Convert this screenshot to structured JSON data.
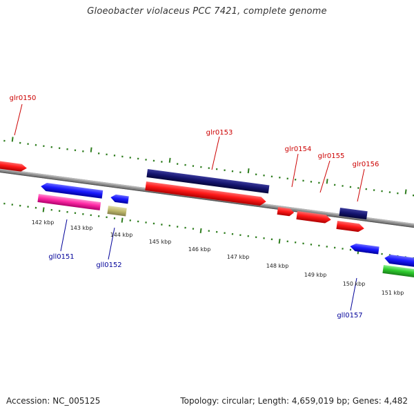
{
  "title": "Gloeobacter violaceus PCC 7421, complete genome",
  "footer": {
    "accession": "Accession: NC_005125",
    "summary": "Topology: circular; Length: 4,659,019 bp; Genes: 4,482"
  },
  "colors": {
    "forward_label": "#cc0000",
    "reverse_label": "#000099",
    "tick": "#2e7d1e",
    "backbone": "#7a7a7a"
  },
  "scale_labels": [
    "142 kbp",
    "143 kbp",
    "144 kbp",
    "145 kbp",
    "146 kbp",
    "147 kbp",
    "148 kbp",
    "149 kbp",
    "150 kbp",
    "151 kbp"
  ],
  "gene_labels": [
    {
      "name": "glr0150",
      "strand": "forward"
    },
    {
      "name": "glr0153",
      "strand": "forward"
    },
    {
      "name": "glr0154",
      "strand": "forward"
    },
    {
      "name": "glr0155",
      "strand": "forward"
    },
    {
      "name": "glr0156",
      "strand": "forward"
    },
    {
      "name": "gll0151",
      "strand": "reverse"
    },
    {
      "name": "gll0152",
      "strand": "reverse"
    },
    {
      "name": "gll0157",
      "strand": "reverse"
    }
  ]
}
